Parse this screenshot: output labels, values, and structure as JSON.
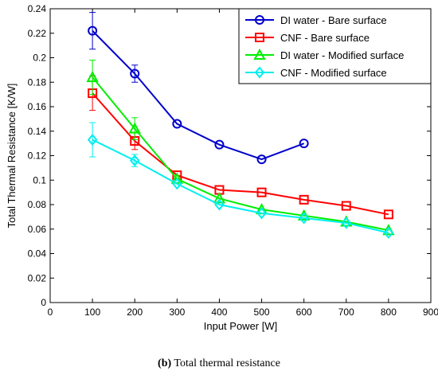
{
  "caption": {
    "letter": "(b)",
    "text": " Total thermal resistance"
  },
  "chart_data": {
    "type": "line",
    "xlabel": "Input Power [W]",
    "ylabel": "Total Thermal Resistance [K/W]",
    "xlim": [
      0,
      900
    ],
    "ylim": [
      0,
      0.24
    ],
    "xticks": [
      "0",
      "100",
      "200",
      "300",
      "400",
      "500",
      "600",
      "700",
      "800",
      "900"
    ],
    "yticks": [
      "0",
      "0.02",
      "0.04",
      "0.06",
      "0.08",
      "0.1",
      "0.12",
      "0.14",
      "0.16",
      "0.18",
      "0.2",
      "0.22",
      "0.24"
    ],
    "grid": false,
    "legend_position": "top-right",
    "series": [
      {
        "name": "DI water - Bare surface",
        "color": "#0000cc",
        "marker": "circle",
        "x": [
          100,
          200,
          300,
          400,
          500,
          600
        ],
        "y": [
          0.222,
          0.187,
          0.146,
          0.129,
          0.117,
          0.13
        ],
        "error": [
          0.015,
          0.007,
          0,
          0,
          0,
          0
        ]
      },
      {
        "name": "CNF - Bare surface",
        "color": "#ff0000",
        "marker": "square",
        "x": [
          100,
          200,
          300,
          400,
          500,
          600,
          700,
          800
        ],
        "y": [
          0.171,
          0.132,
          0.104,
          0.092,
          0.09,
          0.084,
          0.079,
          0.072
        ],
        "error": [
          0.014,
          0.007,
          0,
          0,
          0,
          0,
          0,
          0
        ]
      },
      {
        "name": "DI water - Modified surface",
        "color": "#00ee00",
        "marker": "triangle",
        "x": [
          100,
          200,
          300,
          400,
          500,
          600,
          700,
          800
        ],
        "y": [
          0.184,
          0.142,
          0.101,
          0.085,
          0.076,
          0.071,
          0.066,
          0.059
        ],
        "error": [
          0.014,
          0.009,
          0,
          0,
          0,
          0,
          0,
          0
        ]
      },
      {
        "name": "CNF - Modified surface",
        "color": "#00eeee",
        "marker": "diamond",
        "x": [
          100,
          200,
          300,
          400,
          500,
          600,
          700,
          800
        ],
        "y": [
          0.133,
          0.116,
          0.097,
          0.08,
          0.073,
          0.069,
          0.065,
          0.057
        ],
        "error": [
          0.014,
          0.005,
          0,
          0,
          0,
          0,
          0,
          0
        ]
      }
    ]
  }
}
